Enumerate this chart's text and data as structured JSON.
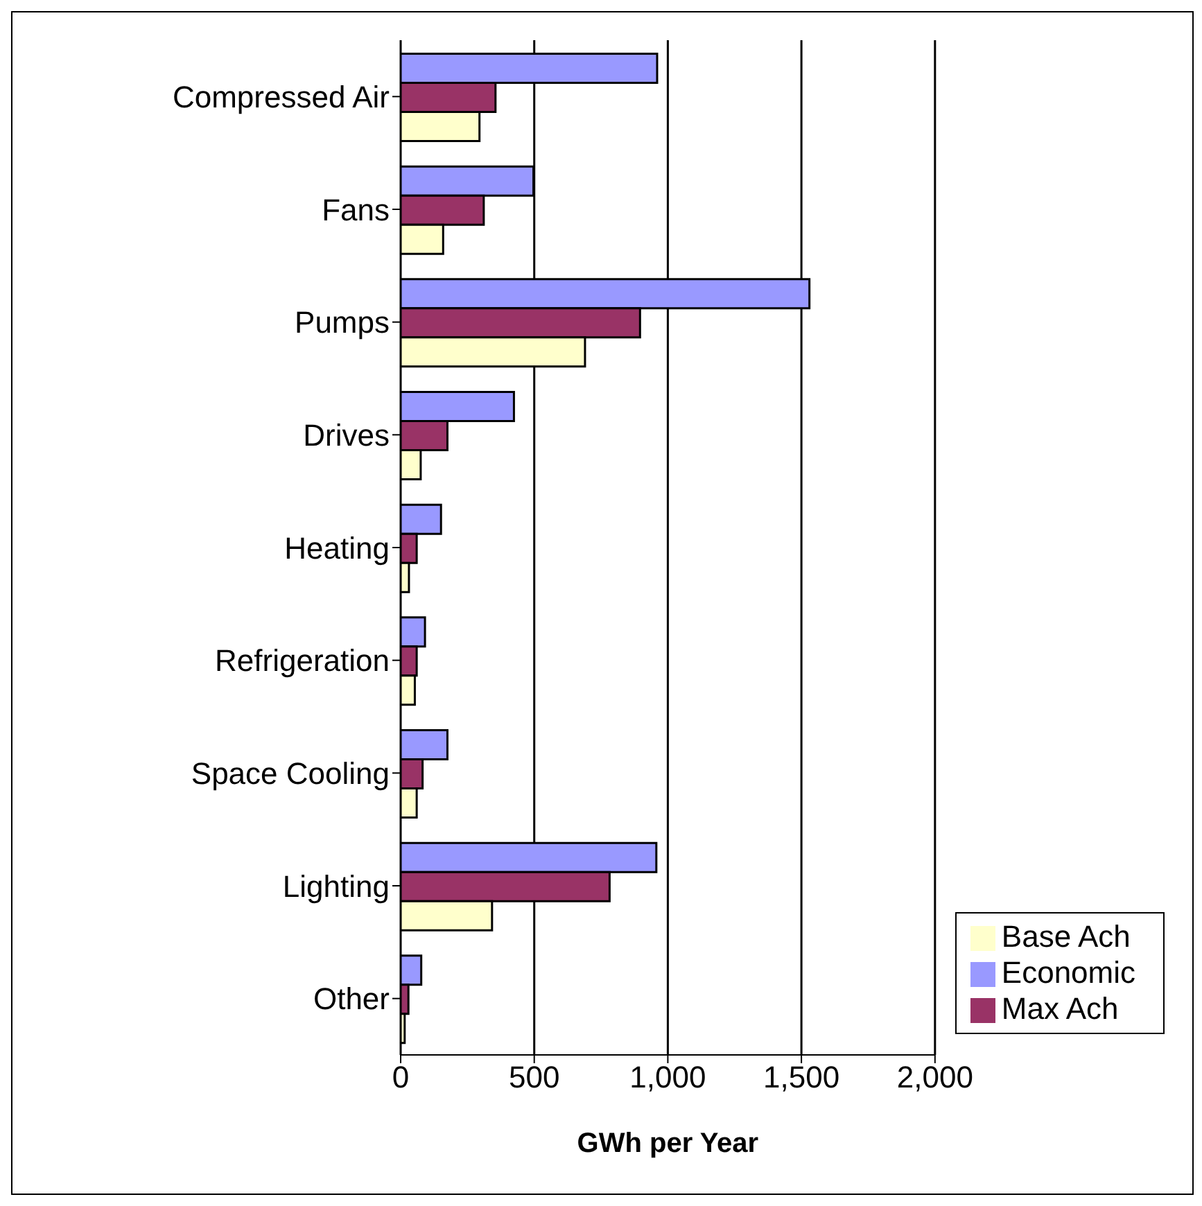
{
  "chart_data": {
    "type": "bar",
    "orientation": "horizontal",
    "xlabel": "GWh per Year",
    "categories": [
      "Compressed Air",
      "Fans",
      "Pumps",
      "Drives",
      "Heating",
      "Refrigeration",
      "Space Cooling",
      "Lighting",
      "Other"
    ],
    "series": [
      {
        "name": "Economic",
        "color": "#9999ff",
        "values": [
          960,
          497,
          1530,
          424,
          151,
          91,
          175,
          957,
          77
        ]
      },
      {
        "name": "Max Ach",
        "color": "#993366",
        "values": [
          355,
          311,
          896,
          175,
          60,
          60,
          82,
          782,
          29
        ]
      },
      {
        "name": "Base Ach",
        "color": "#ffffcc",
        "values": [
          295,
          159,
          690,
          75,
          31,
          53,
          60,
          342,
          15
        ]
      }
    ],
    "xlim": [
      0,
      2000
    ],
    "xticks": [
      {
        "value": 0,
        "label": "0"
      },
      {
        "value": 500,
        "label": "500"
      },
      {
        "value": 1000,
        "label": "1,000"
      },
      {
        "value": 1500,
        "label": "1,500"
      },
      {
        "value": 2000,
        "label": "2,000"
      }
    ],
    "grid": "x",
    "legend": "bottom right"
  }
}
